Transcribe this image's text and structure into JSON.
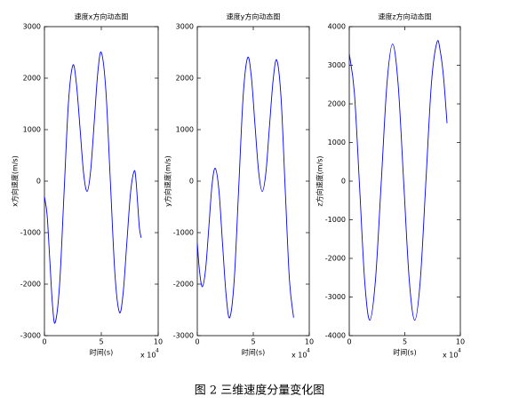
{
  "chart_data": [
    {
      "type": "line",
      "title": "速度x方向动态图",
      "xlabel": "时间(s)",
      "ylabel": "x方向速度(m/s)",
      "x_multiplier": "x 10",
      "x_multiplier_exp": "4",
      "color": "#0000ff",
      "x": [
        0,
        0.235,
        0.47,
        0.705,
        0.94,
        1.33,
        1.72,
        2.11,
        2.5,
        2.81,
        3.13,
        3.44,
        3.75,
        4.06,
        4.38,
        4.69,
        5.0,
        5.4,
        5.8,
        6.2,
        6.6,
        6.93,
        7.25,
        7.58,
        7.9,
        8.05,
        8.2,
        8.35,
        8.5
      ],
      "values": [
        -300,
        -658,
        -1525,
        -2392,
        -2750,
        -2020,
        -250,
        1520,
        2250,
        1892,
        1025,
        158,
        -200,
        194,
        1150,
        2106,
        2500,
        1763,
        -25,
        -1813,
        -2550,
        -2148,
        -1175,
        -202,
        200,
        10,
        -450,
        -910,
        -1100
      ],
      "xlim": [
        0,
        10
      ],
      "xticks": [
        0,
        5,
        10
      ],
      "ylim": [
        -3000,
        3000
      ],
      "yticks": [
        -3000,
        -2000,
        -1000,
        0,
        1000,
        2000,
        3000
      ]
    },
    {
      "type": "line",
      "title": "速度y方向动态图",
      "xlabel": "时间(s)",
      "ylabel": "y方向速度(m/s)",
      "x_multiplier": "x 10",
      "x_multiplier_exp": "4",
      "color": "#0000ff",
      "x": [
        0,
        0.2,
        0.45,
        0.74,
        1.03,
        1.31,
        1.6,
        1.93,
        2.25,
        2.58,
        2.9,
        3.3,
        3.7,
        4.1,
        4.5,
        4.83,
        5.15,
        5.48,
        5.8,
        6.13,
        6.45,
        6.78,
        7.1,
        7.48,
        7.85,
        8.23,
        8.6
      ],
      "values": [
        -1200,
        -1750,
        -2050,
        -1714,
        -900,
        -86,
        250,
        -173,
        -1200,
        -2227,
        -2650,
        -1913,
        -125,
        1663,
        2400,
        2020,
        1100,
        180,
        -200,
        172,
        1075,
        1978,
        2350,
        1620,
        -150,
        -1920,
        -2650
      ],
      "xlim": [
        0,
        10
      ],
      "xticks": [
        0,
        5,
        10
      ],
      "ylim": [
        -3000,
        3000
      ],
      "yticks": [
        -3000,
        -2000,
        -1000,
        0,
        1000,
        2000,
        3000
      ]
    },
    {
      "type": "line",
      "title": "速度z方向动态图",
      "xlabel": "时间(s)",
      "ylabel": "z方向速度(m/s)",
      "x_multiplier": "x 10",
      "x_multiplier_exp": "4",
      "color": "#0000ff",
      "x": [
        0,
        0.46,
        0.93,
        1.39,
        1.85,
        2.36,
        2.88,
        3.39,
        3.9,
        4.4,
        4.9,
        5.4,
        5.9,
        6.4,
        6.9,
        7.4,
        7.9,
        8.2,
        8.5,
        8.8
      ],
      "values": [
        3300,
        2293,
        -150,
        -2593,
        -3600,
        -2556,
        -25,
        2506,
        3550,
        2506,
        -25,
        -2556,
        -3600,
        -2546,
        0,
        2546,
        3600,
        3350,
        2650,
        1500
      ],
      "xlim": [
        0,
        10
      ],
      "xticks": [
        0,
        5,
        10
      ],
      "ylim": [
        -4000,
        4000
      ],
      "yticks": [
        -4000,
        -3000,
        -2000,
        -1000,
        0,
        1000,
        2000,
        3000,
        4000
      ]
    }
  ],
  "caption": "图 2  三维速度分量变化图"
}
